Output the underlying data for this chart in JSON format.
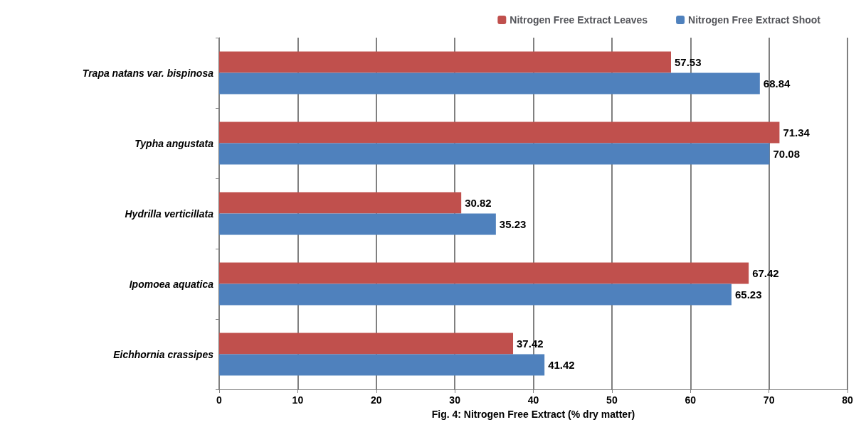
{
  "chart_data": {
    "type": "bar",
    "orientation": "horizontal",
    "xlabel": "Fig. 4: Nitrogen Free Extract (% dry matter)",
    "categories": [
      "Trapa natans var. bispinosa",
      "Typha angustata",
      "Hydrilla verticillata",
      "Ipomoea aquatica",
      "Eichhornia crassipes"
    ],
    "series": [
      {
        "name": "Nitrogen Free Extract Leaves",
        "color": "#c0504d",
        "values": [
          57.53,
          71.34,
          30.82,
          67.42,
          37.42
        ]
      },
      {
        "name": "Nitrogen Free Extract Shoot",
        "color": "#4f81bd",
        "values": [
          68.84,
          70.08,
          35.23,
          65.23,
          41.42
        ]
      }
    ],
    "xlim": [
      0,
      80
    ],
    "xticks": [
      0,
      10,
      20,
      30,
      40,
      50,
      60,
      70,
      80
    ],
    "grid": "x",
    "legend": "top right",
    "data_labels": true
  }
}
